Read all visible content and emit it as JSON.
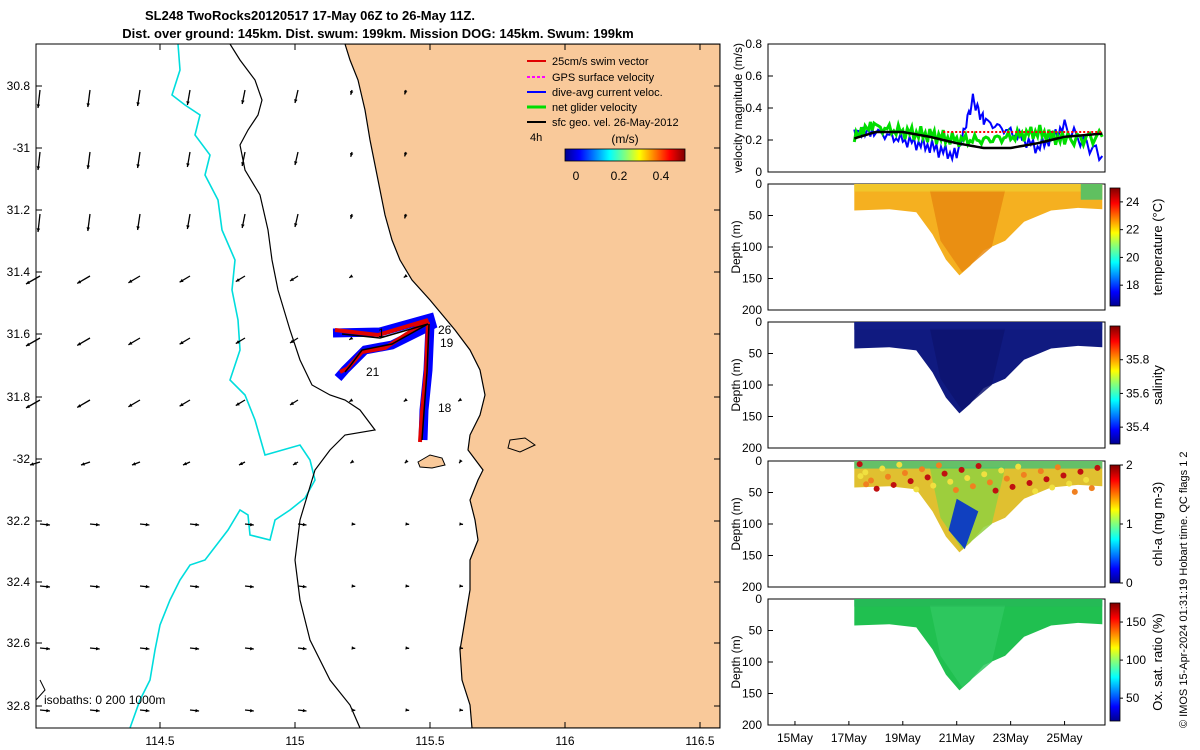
{
  "title": {
    "line1": "SL248 TwoRocks20120517 17-May 06Z to 26-May 11Z.",
    "line2": "Dist. over ground: 145km. Dist. swum: 199km. Mission DOG: 145km. Swum: 199km"
  },
  "map": {
    "lat_ticks": [
      "30.8",
      "-31",
      "31.2",
      "31.4",
      "31.6",
      "31.8",
      "-32",
      "32.2",
      "32.4",
      "32.6",
      "32.8"
    ],
    "lon_ticks": [
      "114.5",
      "115",
      "115.5",
      "116",
      "116.5"
    ],
    "legend": [
      {
        "label": "25cm/s swim vector",
        "color": "#e00000"
      },
      {
        "label": "GPS surface velocity",
        "color": "#ff00ff"
      },
      {
        "label": "dive-avg current veloc.",
        "color": "#0000ff"
      },
      {
        "label": "net glider velocity",
        "color": "#00dd00"
      },
      {
        "label": "sfc geo. vel. 26-May-2012",
        "color": "#000000"
      }
    ],
    "speed_colorbar": {
      "label": "(m/s)",
      "ticks": [
        "0",
        "0.2",
        "0.4"
      ]
    },
    "time_tag": "4h",
    "track_labels": [
      "1",
      "26",
      "19",
      "21",
      "18"
    ],
    "isobaths_text": "isobaths: 0   200  1000m",
    "colors": {
      "land": "#f9c99a",
      "isobath_200": "#00dddd",
      "contour": "#000000"
    }
  },
  "panels": {
    "date_ticks": [
      "15May",
      "17May",
      "19May",
      "21May",
      "23May",
      "25May"
    ],
    "velocity": {
      "ylabel": "velocity magnitude (m/s)",
      "y_ticks": [
        "0",
        "0.2",
        "0.4",
        "0.6",
        "0.8"
      ]
    },
    "depth_ylabel": "Depth (m)",
    "depth_ticks": [
      "0",
      "50",
      "100",
      "150",
      "200"
    ],
    "temperature": {
      "label": "temperature (°C)",
      "ticks": [
        "18",
        "20",
        "22",
        "24"
      ]
    },
    "salinity": {
      "label": "salinity",
      "ticks": [
        "35.4",
        "35.6",
        "35.8"
      ]
    },
    "chla": {
      "label": "chl-a (mg m-3)",
      "ticks": [
        "0",
        "1",
        "2"
      ]
    },
    "oxygen": {
      "label": "Ox. sat. ratio (%)",
      "ticks": [
        "50",
        "100",
        "150"
      ]
    }
  },
  "footer_vertical": "© IMOS 15-Apr-2024 01:31:19 Hobart time. QC flags 1  2",
  "chart_data": [
    {
      "type": "line",
      "title": "",
      "xlabel": "",
      "ylabel": "velocity magnitude (m/s)",
      "ylim": [
        0,
        0.8
      ],
      "series": [
        {
          "values_x_day": [
            17.2,
            18.0,
            19.0,
            20.0,
            21.0,
            21.6,
            22.0,
            23.0,
            24.0,
            25.0,
            26.4
          ],
          "values": [
            0.22,
            0.25,
            0.2,
            0.16,
            0.1,
            0.45,
            0.32,
            0.25,
            0.15,
            0.28,
            0.1
          ],
          "color": "#0000ff"
        },
        {
          "values_x_day": [
            17.2,
            18.0,
            19.0,
            20.0,
            21.0,
            22.0,
            23.0,
            24.0,
            25.0,
            26.4
          ],
          "values": [
            0.22,
            0.28,
            0.25,
            0.23,
            0.2,
            0.2,
            0.22,
            0.25,
            0.2,
            0.22
          ],
          "color": "#00dd00"
        },
        {
          "values_x_day": [
            17.2,
            18.0,
            19.0,
            20.0,
            21.0,
            22.0,
            23.0,
            24.0,
            25.0,
            26.4
          ],
          "values": [
            0.21,
            0.25,
            0.25,
            0.22,
            0.18,
            0.15,
            0.15,
            0.18,
            0.22,
            0.24
          ],
          "color": "#000000"
        },
        {
          "values_x_day": [
            20.5,
            26.4
          ],
          "values": [
            0.25,
            0.25
          ],
          "color": "#ff0000"
        }
      ]
    }
  ]
}
